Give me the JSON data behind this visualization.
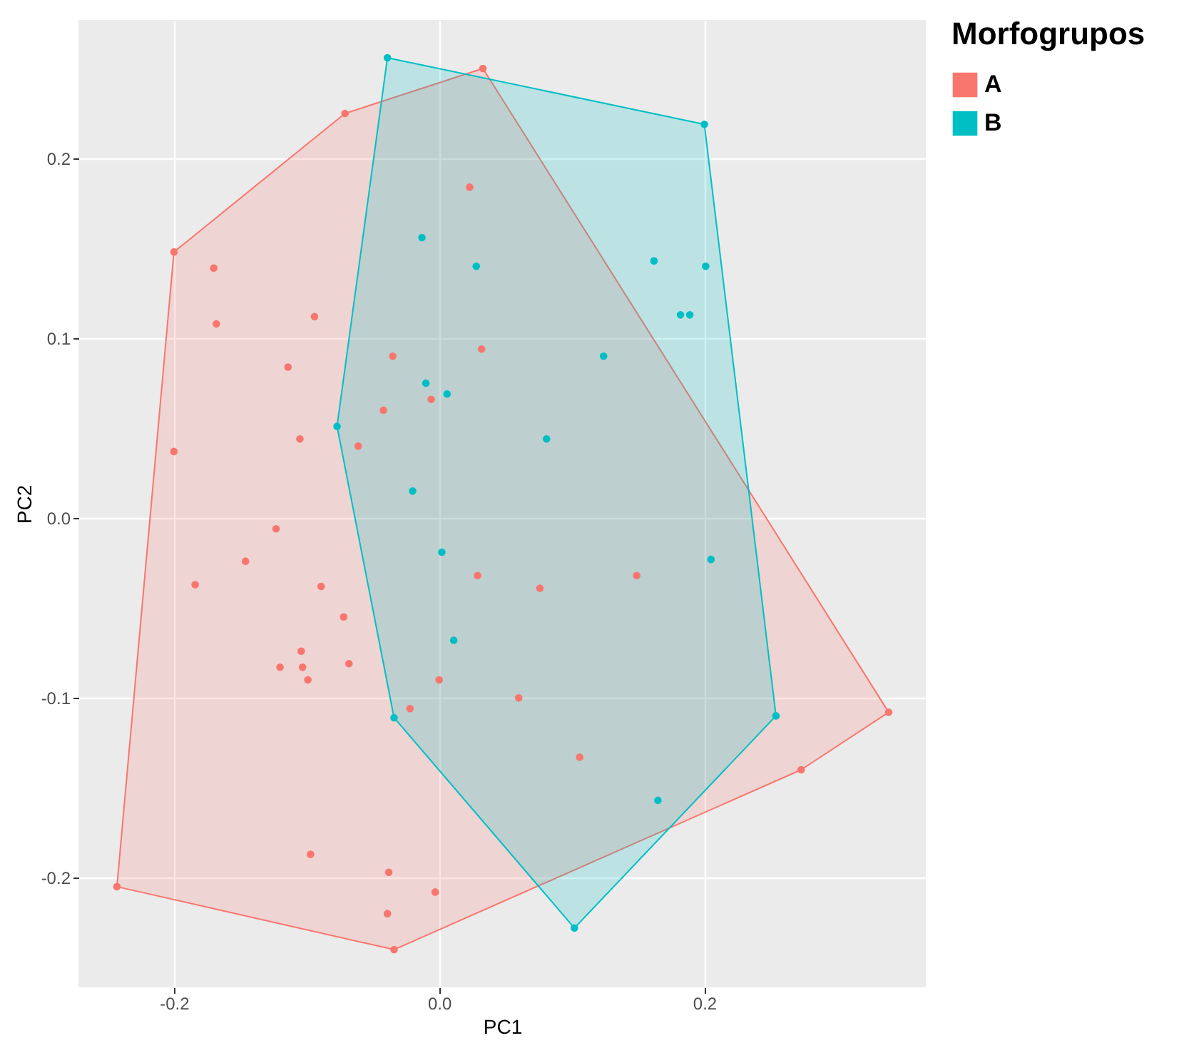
{
  "chart_data": {
    "type": "scatter",
    "xlabel": "PC1",
    "ylabel": "PC2",
    "legend_title": "Morfogrupos",
    "legend": "right",
    "grid": true,
    "marker": "circle",
    "xlim": [
      -0.272,
      0.367
    ],
    "ylim": [
      -0.261,
      0.277
    ],
    "xticks": [
      -0.2,
      {
        "value": 0,
        "label": "0.0"
      },
      0.2
    ],
    "yticks": [
      -0.2,
      -0.1,
      {
        "value": 0,
        "label": "0.0"
      },
      0.1,
      0.2
    ],
    "series": [
      {
        "type": "area",
        "marker": "none",
        "color": "#f8766d",
        "x": [
          -0.243,
          -0.2,
          -0.071,
          0.033,
          0.339,
          0.273,
          -0.034,
          -0.243
        ],
        "values": [
          -0.205,
          0.148,
          0.225,
          0.25,
          -0.108,
          -0.14,
          -0.24,
          -0.205
        ]
      },
      {
        "type": "area",
        "marker": "none",
        "color": "#00bfc4",
        "x": [
          -0.039,
          0.2,
          0.254,
          0.102,
          -0.034,
          -0.077,
          -0.039
        ],
        "values": [
          0.256,
          0.219,
          -0.11,
          -0.228,
          -0.111,
          0.051,
          0.256
        ]
      },
      {
        "name": "A",
        "color": "#f8766d",
        "x": [
          0.033,
          -0.071,
          -0.2,
          -0.17,
          -0.168,
          -0.094,
          -0.114,
          -0.105,
          -0.2,
          0.023,
          -0.035,
          0.032,
          -0.042,
          -0.006,
          -0.061,
          -0.123,
          -0.146,
          -0.184,
          -0.089,
          -0.104,
          -0.072,
          -0.068,
          -0.12,
          -0.103,
          -0.099,
          0.029,
          0.076,
          0.149,
          0.0,
          -0.022,
          0.06,
          0.106,
          0.339,
          0.273,
          -0.097,
          -0.038,
          -0.003,
          -0.039,
          -0.034,
          -0.243
        ],
        "values": [
          0.25,
          0.225,
          0.148,
          0.139,
          0.108,
          0.112,
          0.084,
          0.044,
          0.037,
          0.184,
          0.09,
          0.094,
          0.06,
          0.066,
          0.04,
          -0.006,
          -0.024,
          -0.037,
          -0.038,
          -0.074,
          -0.055,
          -0.081,
          -0.083,
          -0.083,
          -0.09,
          -0.032,
          -0.039,
          -0.032,
          -0.09,
          -0.106,
          -0.1,
          -0.133,
          -0.108,
          -0.14,
          -0.187,
          -0.197,
          -0.208,
          -0.22,
          -0.24,
          -0.205
        ]
      },
      {
        "name": "B",
        "color": "#00bfc4",
        "x": [
          -0.039,
          0.2,
          -0.013,
          0.028,
          0.162,
          0.201,
          0.182,
          0.189,
          0.124,
          -0.01,
          0.006,
          -0.077,
          0.081,
          -0.02,
          0.002,
          0.205,
          0.011,
          -0.034,
          0.254,
          0.165,
          0.102
        ],
        "values": [
          0.256,
          0.219,
          0.156,
          0.14,
          0.143,
          0.14,
          0.113,
          0.113,
          0.09,
          0.075,
          0.069,
          0.051,
          0.044,
          0.015,
          -0.019,
          -0.023,
          -0.068,
          -0.111,
          -0.11,
          -0.157,
          -0.228
        ]
      }
    ]
  }
}
